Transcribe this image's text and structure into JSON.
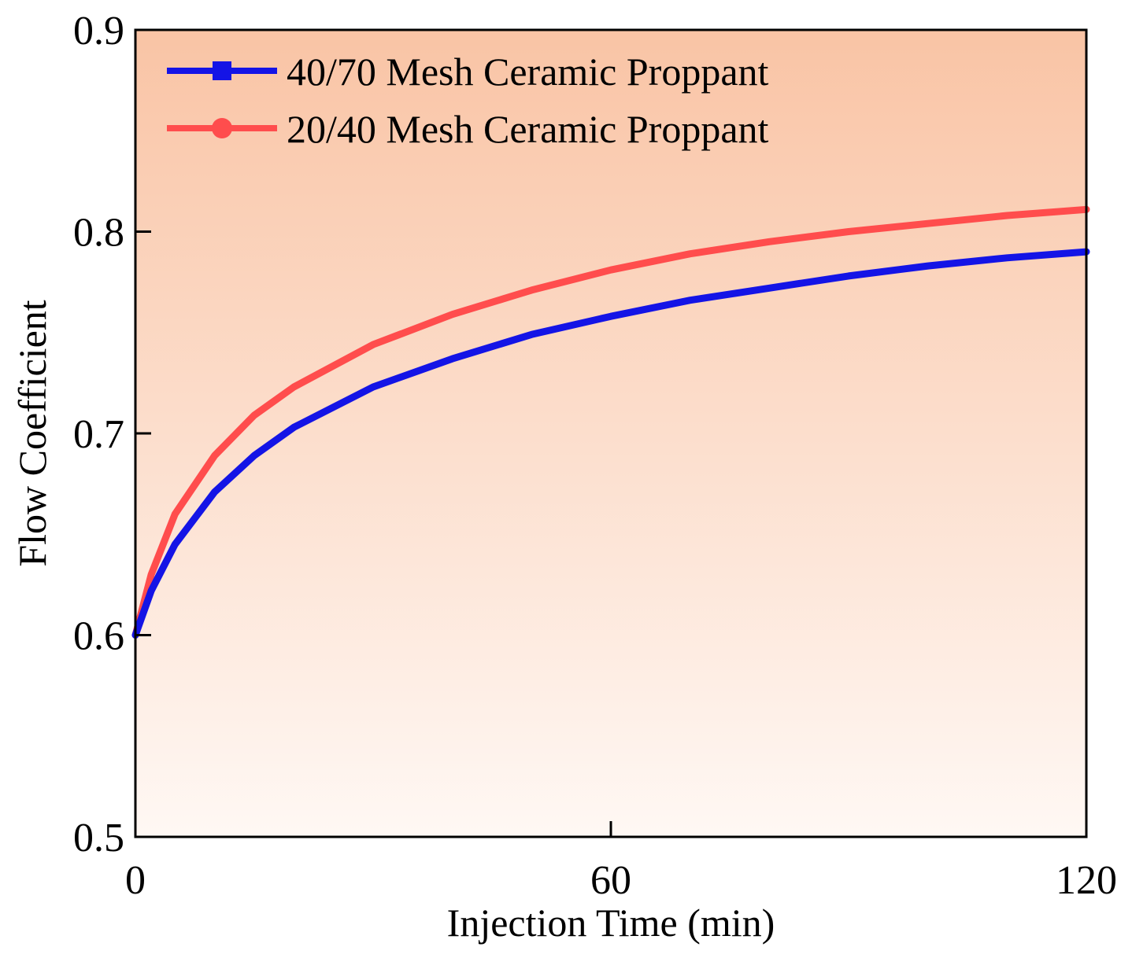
{
  "chart_data": {
    "type": "line",
    "title": "",
    "xlabel": "Injection Time (min)",
    "ylabel": "Flow Coefficient",
    "xlim": [
      0,
      120
    ],
    "ylim": [
      0.5,
      0.9
    ],
    "x_ticks": [
      "0",
      "60",
      "120"
    ],
    "y_ticks": [
      "0.5",
      "0.6",
      "0.7",
      "0.8",
      "0.9"
    ],
    "grid": false,
    "legend_position": "top-left",
    "background": {
      "top": "#f9c4a5",
      "bottom": "#fff8f4"
    },
    "x": [
      0,
      2,
      5,
      10,
      15,
      20,
      30,
      40,
      50,
      60,
      70,
      80,
      90,
      100,
      110,
      120
    ],
    "series": [
      {
        "name": "40/70 Mesh Ceramic Proppant",
        "color": "#1414e6",
        "marker": "square",
        "values": [
          0.6,
          0.622,
          0.645,
          0.671,
          0.689,
          0.703,
          0.723,
          0.737,
          0.749,
          0.758,
          0.766,
          0.772,
          0.778,
          0.783,
          0.787,
          0.79
        ]
      },
      {
        "name": "20/40 Mesh Ceramic Proppant",
        "color": "#ff4d4d",
        "marker": "circle",
        "values": [
          0.6,
          0.63,
          0.66,
          0.689,
          0.709,
          0.723,
          0.744,
          0.759,
          0.771,
          0.781,
          0.789,
          0.795,
          0.8,
          0.804,
          0.808,
          0.811
        ]
      }
    ]
  }
}
